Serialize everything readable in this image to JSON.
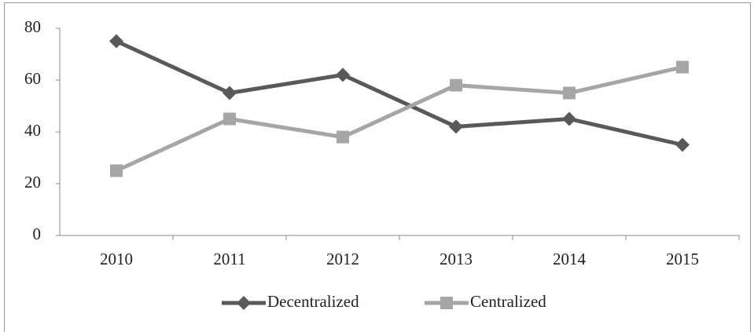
{
  "chart_data": {
    "type": "line",
    "categories": [
      "2010",
      "2011",
      "2012",
      "2013",
      "2014",
      "2015"
    ],
    "series": [
      {
        "name": "Decentralized",
        "color": "#595959",
        "marker": "diamond",
        "values": [
          75,
          55,
          62,
          42,
          45,
          35
        ]
      },
      {
        "name": "Centralized",
        "color": "#a6a6a6",
        "marker": "square",
        "values": [
          25,
          45,
          38,
          58,
          55,
          65
        ]
      }
    ],
    "ylim": [
      0,
      80
    ],
    "yticks": [
      0,
      20,
      40,
      60,
      80
    ],
    "grid": false,
    "legend": "bottom"
  }
}
